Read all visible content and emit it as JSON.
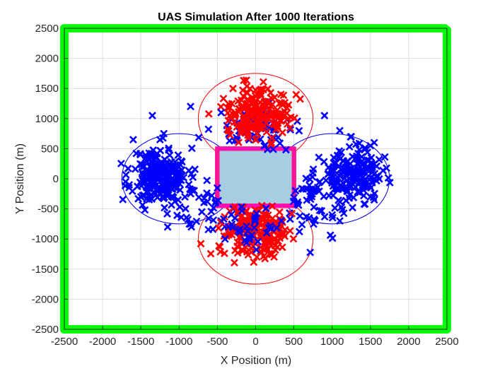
{
  "chart_data": {
    "type": "scatter",
    "title": "UAS Simulation After 1000 Iterations",
    "xlabel": "X Position (m)",
    "ylabel": "Y Position (m)",
    "xlim": [
      -2500,
      2500
    ],
    "ylim": [
      -2500,
      2500
    ],
    "xticks": [
      -2500,
      -2000,
      -1500,
      -1000,
      -500,
      0,
      500,
      1000,
      1500,
      2000,
      2500
    ],
    "yticks": [
      -2500,
      -2000,
      -1500,
      -1000,
      -500,
      0,
      500,
      1000,
      1500,
      2000,
      2500
    ],
    "grid": true,
    "colors": {
      "boundary": "#00ff00",
      "blue": "#0000ff",
      "red": "#ff0000",
      "box_fill": "#a6cee3",
      "box_edge": "#ff00ff"
    },
    "boundary_square": {
      "xmin": -2500,
      "xmax": 2500,
      "ymin": -2500,
      "ymax": 2500,
      "spacing": 35
    },
    "central_box": {
      "xmin": -500,
      "xmax": 500,
      "ymin": -450,
      "ymax": 500,
      "spacing": 22
    },
    "cluster_arcs": [
      {
        "color": "#ff0000",
        "cx": 0,
        "cy": 1000,
        "r": 750
      },
      {
        "color": "#ff0000",
        "cx": 0,
        "cy": -1000,
        "r": 750
      },
      {
        "color": "#0000ff",
        "cx": -1000,
        "cy": 0,
        "r": 750
      },
      {
        "color": "#0000ff",
        "cx": 1000,
        "cy": 0,
        "r": 750
      }
    ],
    "series": [
      {
        "color": "#0000ff",
        "marker": "x",
        "cx": -1250,
        "cy": 50,
        "sx": 180,
        "sy": 230,
        "count": 220,
        "seed": 11
      },
      {
        "color": "#0000ff",
        "marker": "x",
        "cx": 1250,
        "cy": 50,
        "sx": 200,
        "sy": 210,
        "count": 200,
        "seed": 23
      },
      {
        "color": "#0000ff",
        "marker": "x",
        "cx": -750,
        "cy": -400,
        "sx": 200,
        "sy": 230,
        "count": 45,
        "seed": 37
      },
      {
        "color": "#0000ff",
        "marker": "x",
        "cx": 750,
        "cy": -400,
        "sx": 200,
        "sy": 230,
        "count": 45,
        "seed": 41
      },
      {
        "color": "#0000ff",
        "marker": "x",
        "cx": 0,
        "cy": 800,
        "sx": 280,
        "sy": 220,
        "count": 70,
        "seed": 53
      },
      {
        "color": "#ff0000",
        "marker": "x",
        "cx": 0,
        "cy": 1050,
        "sx": 210,
        "sy": 220,
        "count": 180,
        "seed": 67
      },
      {
        "color": "#ff0000",
        "marker": "x",
        "cx": 0,
        "cy": -850,
        "sx": 230,
        "sy": 220,
        "count": 200,
        "seed": 79
      },
      {
        "color": "#0000ff",
        "marker": "x",
        "cx": 0,
        "cy": -800,
        "sx": 300,
        "sy": 200,
        "count": 40,
        "seed": 83
      }
    ],
    "outliers": [
      {
        "color": "#0000ff",
        "points": [
          [
            -1350,
            1050
          ],
          [
            -1600,
            650
          ],
          [
            -1250,
            650
          ],
          [
            -850,
            1200
          ],
          [
            -1200,
            750
          ],
          [
            -450,
            1100
          ],
          [
            900,
            1050
          ],
          [
            1100,
            800
          ],
          [
            1250,
            700
          ],
          [
            1500,
            550
          ],
          [
            1550,
            600
          ],
          [
            1500,
            -300
          ],
          [
            1550,
            -350
          ],
          [
            -1150,
            -800
          ],
          [
            -850,
            -750
          ],
          [
            -400,
            -1000
          ],
          [
            1100,
            -700
          ],
          [
            -1700,
            -50
          ],
          [
            -1500,
            -300
          ],
          [
            1000,
            -600
          ]
        ]
      }
    ]
  }
}
